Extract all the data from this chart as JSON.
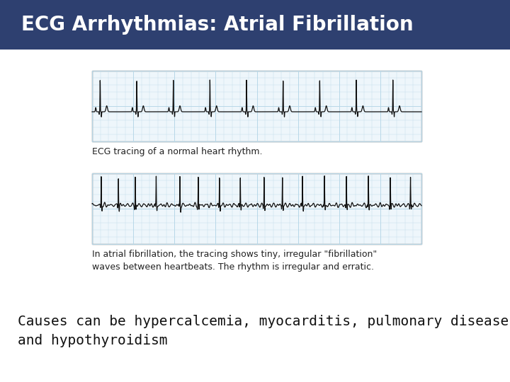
{
  "title": "ECG Arrhythmias: Atrial Fibrillation",
  "title_bg_color": "#2E4070",
  "title_text_color": "#FFFFFF",
  "title_fontsize": 20,
  "body_bg_color": "#FFFFFF",
  "caption1": "ECG tracing of a normal heart rhythm.",
  "caption2": "In atrial fibrillation, the tracing shows tiny, irregular \"fibrillation\"\nwaves between heartbeats. The rhythm is irregular and erratic.",
  "causes_text": "Causes can be hypercalcemia, myocarditis, pulmonary disease,\nand hypothyroidism",
  "caption_fontsize": 9,
  "causes_fontsize": 14,
  "ecg_grid_color": "#B8D8E8",
  "ecg_line_color": "#111111",
  "ecg_bg_color": "#EEF6FB",
  "ecg_border_color": "#777777"
}
